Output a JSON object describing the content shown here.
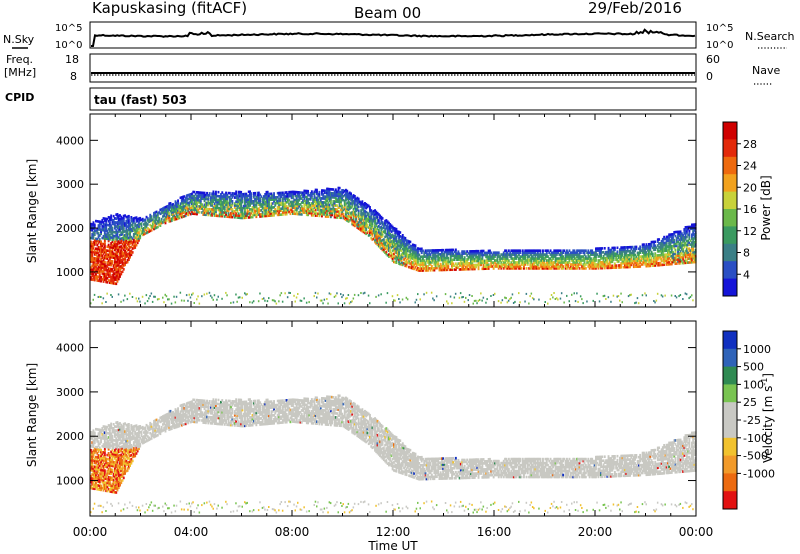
{
  "header": {
    "station": "Kapuskasing (fitACF)",
    "beam": "Beam 00",
    "date": "29/Feb/2016"
  },
  "params_panel": {
    "nsky_label": "N.Sky",
    "nsearch_label": "N.Search",
    "noise_ticks_left": [
      "10^5",
      "10^0"
    ],
    "noise_ticks_right": [
      "10^5",
      "10^0"
    ],
    "freq_label_line1": "Freq.",
    "freq_label_line2": "[MHz]",
    "freq_ticks": [
      "18",
      "8"
    ],
    "nave_label": "Nave",
    "nave_ticks": [
      "60",
      "0"
    ],
    "cpid_label": "CPID",
    "cpid_value": "tau (fast) 503"
  },
  "colors": {
    "power": [
      "#1515d8",
      "#2a4fc4",
      "#3a7f86",
      "#3a9a60",
      "#6ab84a",
      "#c8d23a",
      "#f2a21e",
      "#ee6a0e",
      "#e32a0a",
      "#d00000"
    ],
    "velocity": [
      "#1030c0",
      "#2f63b8",
      "#2f8a52",
      "#79c451",
      "#c9c9c4",
      "#c9c9c4",
      "#f1c22e",
      "#f19a2a",
      "#ec6a10",
      "#e21212"
    ],
    "groundscatter": "#c8c8c2"
  },
  "chart_data": [
    {
      "type": "heatmap",
      "name": "power",
      "ylabel": "Slant Range [km]",
      "ylim": [
        200,
        4600
      ],
      "xlim": [
        0,
        24
      ],
      "yticks": [
        "1000",
        "2000",
        "3000",
        "4000"
      ],
      "colorbar": {
        "label": "Power [dB]",
        "range": [
          0,
          32
        ],
        "ticks": [
          "4",
          "8",
          "12",
          "16",
          "20",
          "24",
          "28"
        ]
      },
      "echo_band_km": [
        {
          "t": 0.0,
          "lo": 800,
          "hi": 2100
        },
        {
          "t": 1.0,
          "lo": 700,
          "hi": 2300
        },
        {
          "t": 2.0,
          "lo": 1800,
          "hi": 2200
        },
        {
          "t": 3.0,
          "lo": 2100,
          "hi": 2500
        },
        {
          "t": 4.0,
          "lo": 2300,
          "hi": 2800
        },
        {
          "t": 6.0,
          "lo": 2200,
          "hi": 2800
        },
        {
          "t": 8.0,
          "lo": 2300,
          "hi": 2800
        },
        {
          "t": 10.0,
          "lo": 2200,
          "hi": 2900
        },
        {
          "t": 11.0,
          "lo": 1800,
          "hi": 2500
        },
        {
          "t": 12.0,
          "lo": 1200,
          "hi": 2000
        },
        {
          "t": 13.0,
          "lo": 1000,
          "hi": 1500
        },
        {
          "t": 16.0,
          "lo": 1050,
          "hi": 1450
        },
        {
          "t": 20.0,
          "lo": 1050,
          "hi": 1500
        },
        {
          "t": 22.0,
          "lo": 1100,
          "hi": 1600
        },
        {
          "t": 24.0,
          "lo": 1200,
          "hi": 2100
        }
      ]
    },
    {
      "type": "heatmap",
      "name": "velocity",
      "xlabel": "Time UT",
      "ylabel": "Slant Range [km]",
      "ylim": [
        200,
        4600
      ],
      "xlim": [
        0,
        24
      ],
      "xticks": [
        "00:00",
        "04:00",
        "08:00",
        "12:00",
        "16:00",
        "20:00",
        "00:00"
      ],
      "yticks": [
        "1000",
        "2000",
        "3000",
        "4000"
      ],
      "colorbar": {
        "label": "Velocity [m s^-1]",
        "ticks": [
          "1000",
          "500",
          "100",
          "25",
          "-25",
          "-100",
          "-500",
          "-1000"
        ]
      }
    }
  ]
}
